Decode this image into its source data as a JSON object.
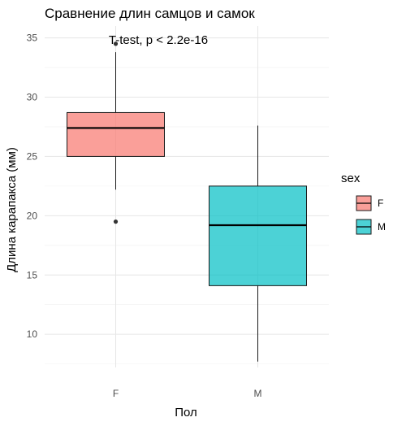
{
  "chart_data": {
    "type": "boxplot",
    "title": "Сравнение длин самцов и самок",
    "annotation": "T-test, p < 2.2e-16",
    "xlabel": "Пол",
    "ylabel": "Длина карапакса (мм)",
    "categories": [
      "F",
      "M"
    ],
    "ylim": [
      7.2,
      36
    ],
    "yticks": [
      10,
      15,
      20,
      25,
      30,
      35
    ],
    "grid": true,
    "legend_title": "sex",
    "legend_position": "right",
    "boxes": [
      {
        "category": "F",
        "color": "#F8766D",
        "whisker_low": 22.2,
        "q1": 25.0,
        "median": 27.4,
        "q3": 28.7,
        "whisker_high": 33.8,
        "outliers": [
          34.5,
          19.5
        ]
      },
      {
        "category": "M",
        "color": "#00BFC4",
        "whisker_low": 7.7,
        "q1": 14.1,
        "median": 19.2,
        "q3": 22.5,
        "whisker_high": 27.6,
        "outliers": []
      }
    ]
  }
}
